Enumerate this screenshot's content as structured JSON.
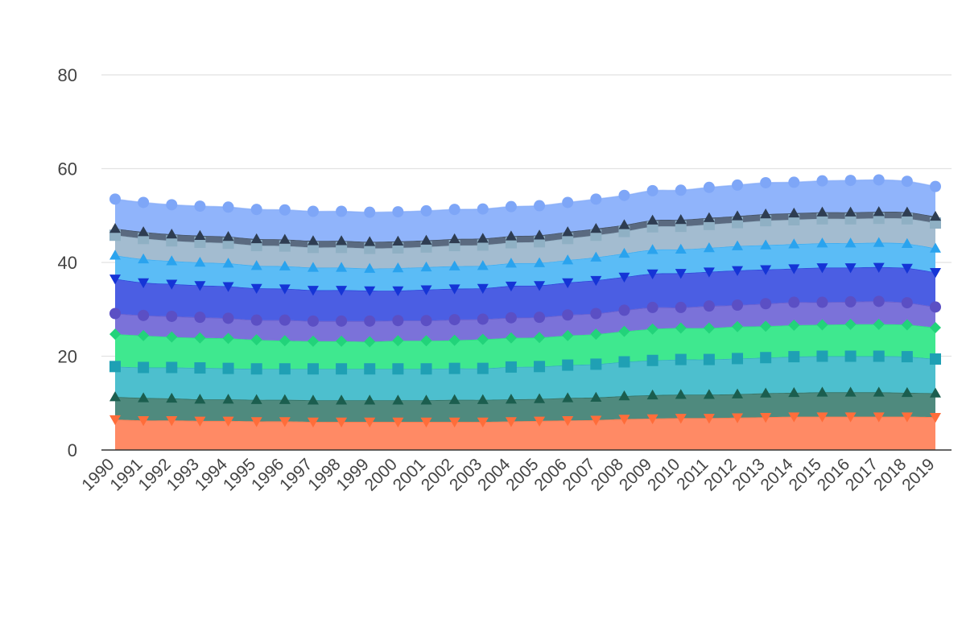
{
  "chart_data": {
    "type": "area",
    "stacked": true,
    "title": "",
    "xlabel": "",
    "ylabel": "",
    "ylim": [
      0,
      80
    ],
    "yticks": [
      0,
      20,
      40,
      60,
      80
    ],
    "grid": true,
    "legend": "none",
    "categories": [
      "1990",
      "1991",
      "1992",
      "1993",
      "1994",
      "1995",
      "1996",
      "1997",
      "1998",
      "1999",
      "2000",
      "2001",
      "2002",
      "2003",
      "2004",
      "2005",
      "2006",
      "2007",
      "2008",
      "2009",
      "2010",
      "2011",
      "2012",
      "2013",
      "2014",
      "2015",
      "2016",
      "2017",
      "2018",
      "2019"
    ],
    "series": [
      {
        "color": "#ff8a65",
        "marker_color": "#ff6d3a",
        "marker": "triangle-down",
        "values": [
          6.5,
          6.3,
          6.3,
          6.2,
          6.2,
          6.1,
          6.1,
          6.0,
          6.0,
          6.0,
          6.0,
          6.0,
          6.0,
          6.0,
          6.1,
          6.2,
          6.3,
          6.4,
          6.6,
          6.7,
          6.8,
          6.8,
          6.9,
          7.0,
          7.1,
          7.1,
          7.1,
          7.1,
          7.1,
          7.0
        ]
      },
      {
        "color": "#4f8a7e",
        "marker_color": "#1b5e4f",
        "marker": "triangle-up",
        "values": [
          4.8,
          4.8,
          4.7,
          4.6,
          4.6,
          4.6,
          4.6,
          4.6,
          4.6,
          4.6,
          4.6,
          4.6,
          4.7,
          4.7,
          4.7,
          4.7,
          4.8,
          4.8,
          4.9,
          5.0,
          5.0,
          5.0,
          5.0,
          5.1,
          5.1,
          5.2,
          5.2,
          5.2,
          5.1,
          5.1
        ]
      },
      {
        "color": "#4dbfce",
        "marker_color": "#1fa0b4",
        "marker": "square",
        "values": [
          6.5,
          6.5,
          6.6,
          6.7,
          6.6,
          6.6,
          6.6,
          6.7,
          6.7,
          6.7,
          6.7,
          6.7,
          6.7,
          6.7,
          6.9,
          6.9,
          7.0,
          7.1,
          7.3,
          7.4,
          7.5,
          7.5,
          7.6,
          7.6,
          7.7,
          7.7,
          7.7,
          7.7,
          7.7,
          7.3
        ]
      },
      {
        "color": "#3fe88f",
        "marker_color": "#22d37a",
        "marker": "diamond",
        "values": [
          6.9,
          6.8,
          6.5,
          6.4,
          6.4,
          6.2,
          6.0,
          5.9,
          5.9,
          5.8,
          6.0,
          6.0,
          6.0,
          6.2,
          6.2,
          6.2,
          6.3,
          6.4,
          6.5,
          6.7,
          6.7,
          6.7,
          6.8,
          6.7,
          6.7,
          6.7,
          6.8,
          6.8,
          6.8,
          6.7
        ]
      },
      {
        "color": "#7b72d9",
        "marker_color": "#5b4fc4",
        "marker": "circle",
        "values": [
          4.4,
          4.3,
          4.4,
          4.4,
          4.3,
          4.2,
          4.4,
          4.3,
          4.3,
          4.4,
          4.3,
          4.3,
          4.4,
          4.3,
          4.3,
          4.3,
          4.4,
          4.4,
          4.5,
          4.6,
          4.4,
          4.7,
          4.6,
          4.8,
          4.9,
          4.8,
          4.8,
          4.9,
          4.7,
          4.4
        ]
      },
      {
        "color": "#4b5ee3",
        "marker_color": "#1534d6",
        "marker": "triangle-down",
        "values": [
          7.4,
          7.0,
          6.9,
          6.8,
          6.8,
          6.8,
          6.7,
          6.6,
          6.6,
          6.5,
          6.4,
          6.6,
          6.6,
          6.6,
          6.8,
          6.8,
          6.9,
          7.1,
          7.1,
          7.2,
          7.3,
          7.3,
          7.4,
          7.3,
          7.2,
          7.4,
          7.3,
          7.3,
          7.4,
          7.4
        ]
      },
      {
        "color": "#5bbcf6",
        "marker_color": "#2aa3ee",
        "marker": "triangle-up",
        "values": [
          5.0,
          5.0,
          4.9,
          4.9,
          4.9,
          4.8,
          4.8,
          4.8,
          4.8,
          4.7,
          4.8,
          4.8,
          4.8,
          4.8,
          4.8,
          4.8,
          4.8,
          4.9,
          5.0,
          5.1,
          5.1,
          5.1,
          5.2,
          5.2,
          5.2,
          5.2,
          5.2,
          5.2,
          5.2,
          5.1
        ]
      },
      {
        "color": "#a3bcd0",
        "marker_color": "#8fb0c4",
        "marker": "square",
        "values": [
          4.3,
          4.4,
          4.3,
          4.3,
          4.3,
          4.3,
          4.3,
          4.3,
          4.3,
          4.3,
          4.3,
          4.3,
          4.4,
          4.4,
          4.4,
          4.5,
          4.6,
          4.7,
          4.7,
          4.9,
          4.9,
          5.0,
          5.0,
          5.2,
          5.2,
          5.2,
          5.2,
          5.2,
          5.3,
          5.4
        ]
      },
      {
        "color": "#5a6a80",
        "marker_color": "#2e3d52",
        "marker": "triangle-up",
        "values": [
          1.4,
          1.4,
          1.4,
          1.4,
          1.4,
          1.4,
          1.4,
          1.4,
          1.4,
          1.4,
          1.4,
          1.4,
          1.4,
          1.4,
          1.4,
          1.4,
          1.4,
          1.4,
          1.4,
          1.4,
          1.4,
          1.4,
          1.4,
          1.4,
          1.4,
          1.4,
          1.4,
          1.4,
          1.4,
          1.4
        ]
      },
      {
        "color": "#90b4fb",
        "marker_color": "#7ea6f7",
        "marker": "circle",
        "values": [
          6.3,
          6.3,
          6.3,
          6.3,
          6.3,
          6.3,
          6.3,
          6.3,
          6.3,
          6.3,
          6.3,
          6.3,
          6.3,
          6.3,
          6.3,
          6.3,
          6.3,
          6.3,
          6.3,
          6.3,
          6.3,
          6.5,
          6.6,
          6.7,
          6.6,
          6.7,
          6.8,
          6.8,
          6.6,
          6.4
        ]
      }
    ]
  }
}
